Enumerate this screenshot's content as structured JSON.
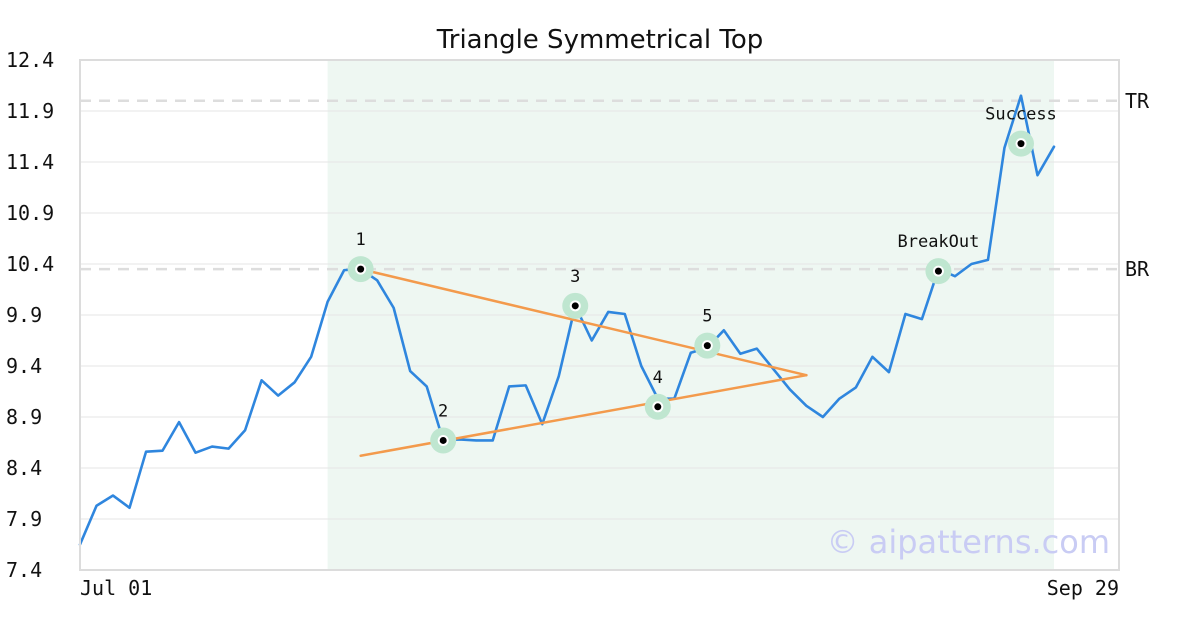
{
  "chart_data": {
    "type": "line",
    "title": "Triangle Symmetrical Top",
    "ylim": [
      7.4,
      12.4
    ],
    "yticks": [
      "7.4",
      "7.9",
      "8.4",
      "8.9",
      "9.4",
      "9.9",
      "10.4",
      "10.9",
      "11.4",
      "11.9",
      "12.4"
    ],
    "xticks": [
      "Jul 01",
      "Sep 29"
    ],
    "grid": true,
    "pattern_region": {
      "start_index": 15,
      "end_index": 59
    },
    "series": [
      {
        "color": "#2f86de",
        "values": [
          7.65,
          8.03,
          8.13,
          8.01,
          8.56,
          8.57,
          8.85,
          8.55,
          8.61,
          8.59,
          8.77,
          9.26,
          9.11,
          9.24,
          9.49,
          10.03,
          10.34,
          10.35,
          10.24,
          9.97,
          9.35,
          9.2,
          8.67,
          8.68,
          8.67,
          8.67,
          9.2,
          9.21,
          8.83,
          9.3,
          9.99,
          9.65,
          9.93,
          9.91,
          9.4,
          9.08,
          9.08,
          9.53,
          9.58,
          9.75,
          9.52,
          9.57,
          9.37,
          9.17,
          9.01,
          8.9,
          9.08,
          9.19,
          9.49,
          9.34,
          9.91,
          9.86,
          10.35,
          10.28,
          10.4,
          10.44,
          11.54,
          12.05,
          11.27,
          11.55
        ]
      }
    ],
    "reference_lines": [
      {
        "label": "TR",
        "value": 12.0
      },
      {
        "label": "BR",
        "value": 10.35
      }
    ],
    "trendlines": [
      {
        "color": "#f39a4c",
        "points": [
          [
            17,
            10.35
          ],
          [
            44,
            9.31
          ]
        ]
      },
      {
        "color": "#f39a4c",
        "points": [
          [
            17,
            8.52
          ],
          [
            44,
            9.31
          ]
        ]
      }
    ],
    "annotations": [
      {
        "label": "1",
        "index": 17,
        "value": 10.35
      },
      {
        "label": "2",
        "index": 22,
        "value": 8.67
      },
      {
        "label": "3",
        "index": 30,
        "value": 9.99
      },
      {
        "label": "4",
        "index": 35,
        "value": 9.0
      },
      {
        "label": "5",
        "index": 38,
        "value": 9.6
      },
      {
        "label": "BreakOut",
        "index": 52,
        "value": 10.33
      },
      {
        "label": "Success",
        "index": 57,
        "value": 11.58
      }
    ],
    "watermark": "© aipatterns.com",
    "colors": {
      "line": "#2f86de",
      "trendline": "#f39a4c",
      "pattern_bg": "#eef7f2",
      "marker_halo": "#bfe6d0",
      "reference": "#dddddd",
      "watermark": "#c9ccf4"
    }
  }
}
